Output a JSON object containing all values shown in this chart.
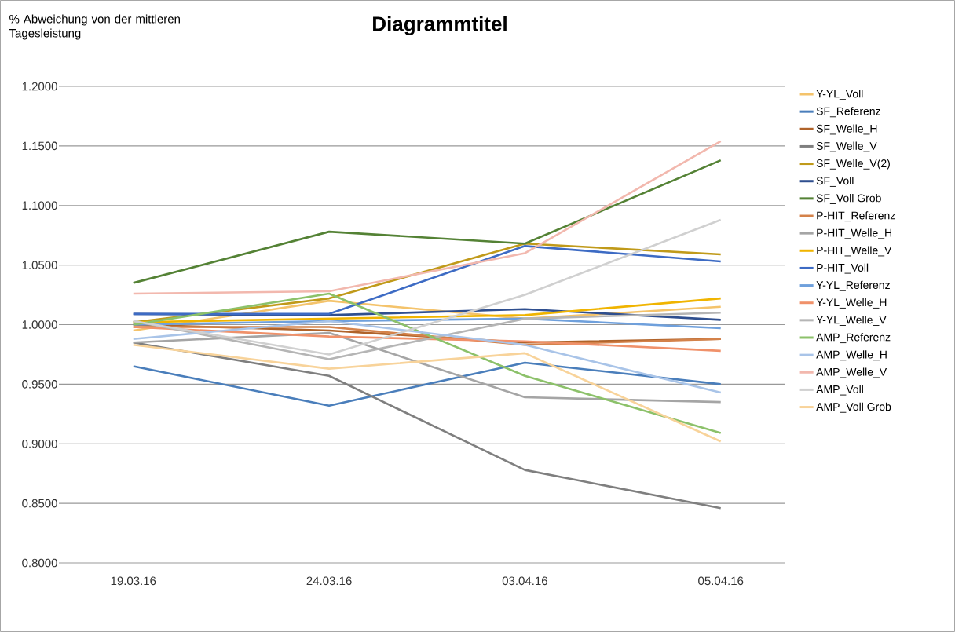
{
  "chart_data": {
    "type": "line",
    "title": "Diagrammtitel",
    "ylabel": "% Abweichung von der mittleren Tagesleistung",
    "categories": [
      "19.03.16",
      "24.03.16",
      "03.04.16",
      "05.04.16"
    ],
    "ylim": [
      0.8,
      1.2
    ],
    "yticks": [
      {
        "value": 0.8,
        "label": "0.8000"
      },
      {
        "value": 0.85,
        "label": "0.8500"
      },
      {
        "value": 0.9,
        "label": "0.9000"
      },
      {
        "value": 0.95,
        "label": "0.9500"
      },
      {
        "value": 1.0,
        "label": "1.0000"
      },
      {
        "value": 1.05,
        "label": "1.0500"
      },
      {
        "value": 1.1,
        "label": "1.1000"
      },
      {
        "value": 1.15,
        "label": "1.1500"
      },
      {
        "value": 1.2,
        "label": "1.2000"
      }
    ],
    "grid": "y",
    "legend": "right",
    "marker": "none",
    "line_style": "solid",
    "series": [
      {
        "name": "Y-YL_Voll",
        "color": "#f4c36b",
        "values": [
          0.995,
          1.02,
          1.005,
          1.015
        ]
      },
      {
        "name": "SF_Referenz",
        "color": "#4a7ebb",
        "values": [
          0.965,
          0.932,
          0.968,
          0.95
        ]
      },
      {
        "name": "SF_Welle_H",
        "color": "#b0632a",
        "values": [
          1.0,
          0.995,
          0.985,
          0.988
        ]
      },
      {
        "name": "SF_Welle_V",
        "color": "#7f7f7f",
        "values": [
          0.985,
          0.957,
          0.878,
          0.846
        ]
      },
      {
        "name": "SF_Welle_V(2)",
        "color": "#c09a1a",
        "values": [
          1.002,
          1.022,
          1.068,
          1.059
        ]
      },
      {
        "name": "SF_Voll",
        "color": "#2f4f8f",
        "values": [
          1.009,
          1.008,
          1.013,
          1.004
        ]
      },
      {
        "name": "SF_Voll Grob",
        "color": "#548235",
        "values": [
          1.035,
          1.078,
          1.068,
          1.138
        ]
      },
      {
        "name": "P-HIT_Referenz",
        "color": "#d4824a",
        "values": [
          0.998,
          0.998,
          0.983,
          0.988
        ]
      },
      {
        "name": "P-HIT_Welle_H",
        "color": "#a5a5a5",
        "values": [
          0.985,
          0.993,
          0.939,
          0.935
        ]
      },
      {
        "name": "P-HIT_Welle_V",
        "color": "#f0b400",
        "values": [
          1.002,
          1.005,
          1.008,
          1.022
        ]
      },
      {
        "name": "P-HIT_Voll",
        "color": "#3d6bc4",
        "values": [
          1.009,
          1.009,
          1.066,
          1.053
        ]
      },
      {
        "name": "Y-YL_Referenz",
        "color": "#6fa0dc",
        "values": [
          1.0,
          1.003,
          1.005,
          0.997
        ]
      },
      {
        "name": "Y-YL_Welle_H",
        "color": "#f0916a",
        "values": [
          0.998,
          0.99,
          0.986,
          0.978
        ]
      },
      {
        "name": "Y-YL_Welle_V",
        "color": "#b5b5b5",
        "values": [
          1.003,
          0.971,
          1.005,
          1.01
        ]
      },
      {
        "name": "AMP_Referenz",
        "color": "#8cc16a",
        "values": [
          1.0,
          1.026,
          0.957,
          0.909
        ]
      },
      {
        "name": "AMP_Welle_H",
        "color": "#a9c4e8",
        "values": [
          0.988,
          1.003,
          0.983,
          0.943
        ]
      },
      {
        "name": "AMP_Welle_V",
        "color": "#f2b8ae",
        "values": [
          1.026,
          1.028,
          1.06,
          1.154
        ]
      },
      {
        "name": "AMP_Voll",
        "color": "#d0d0d0",
        "values": [
          1.003,
          0.975,
          1.025,
          1.088
        ]
      },
      {
        "name": "AMP_Voll Grob",
        "color": "#f8d39a",
        "values": [
          0.983,
          0.963,
          0.976,
          0.902
        ]
      }
    ]
  }
}
